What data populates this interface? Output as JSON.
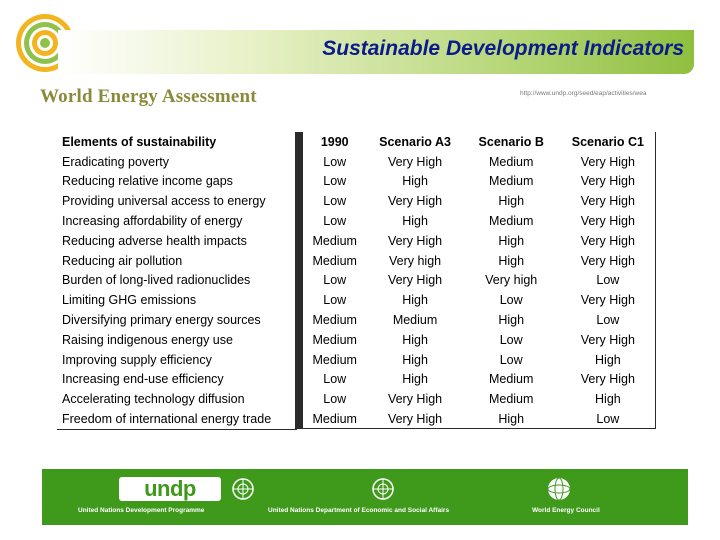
{
  "header": {
    "title": "Sustainable Development Indicators",
    "brand": "World Energy Assessment",
    "url": "http://www.undp.org/seed/eap/activities/wea"
  },
  "table": {
    "headers": [
      "Elements of sustainability",
      "1990",
      "Scenario A3",
      "Scenario B",
      "Scenario C1"
    ],
    "rows": [
      [
        "Eradicating poverty",
        "Low",
        "Very High",
        "Medium",
        "Very High"
      ],
      [
        "Reducing relative income gaps",
        "Low",
        "High",
        "Medium",
        "Very High"
      ],
      [
        "Providing universal access to energy",
        "Low",
        "Very High",
        "High",
        "Very High"
      ],
      [
        "Increasing affordability of energy",
        "Low",
        "High",
        "Medium",
        "Very High"
      ],
      [
        "Reducing adverse health impacts",
        "Medium",
        "Very High",
        "High",
        "Very High"
      ],
      [
        "Reducing air pollution",
        "Medium",
        "Very high",
        "High",
        "Very High"
      ],
      [
        "Burden of long-lived radionuclides",
        "Low",
        "Very High",
        "Very high",
        "Low"
      ],
      [
        "Limiting GHG emissions",
        "Low",
        "High",
        "Low",
        "Very High"
      ],
      [
        "Diversifying primary energy sources",
        "Medium",
        "Medium",
        "High",
        "Low"
      ],
      [
        "Raising indigenous energy use",
        "Medium",
        "High",
        "Low",
        "Very High"
      ],
      [
        "Improving supply efficiency",
        "Medium",
        "High",
        "Low",
        "High"
      ],
      [
        "Increasing end-use efficiency",
        "Low",
        "High",
        "Medium",
        "Very High"
      ],
      [
        "Accelerating technology diffusion",
        "Low",
        "Very High",
        "Medium",
        "High"
      ],
      [
        "Freedom of international energy trade",
        "Medium",
        "Very High",
        "High",
        "Low"
      ]
    ]
  },
  "footer": {
    "logo_text": "undp",
    "labels": [
      "United Nations Development Programme",
      "United Nations Department of Economic and Social Affairs",
      "World Energy Council"
    ]
  },
  "colors": {
    "title": "#0b1b8a",
    "footer_green": "#3f9a1c",
    "brand": "#8a8a3a"
  }
}
